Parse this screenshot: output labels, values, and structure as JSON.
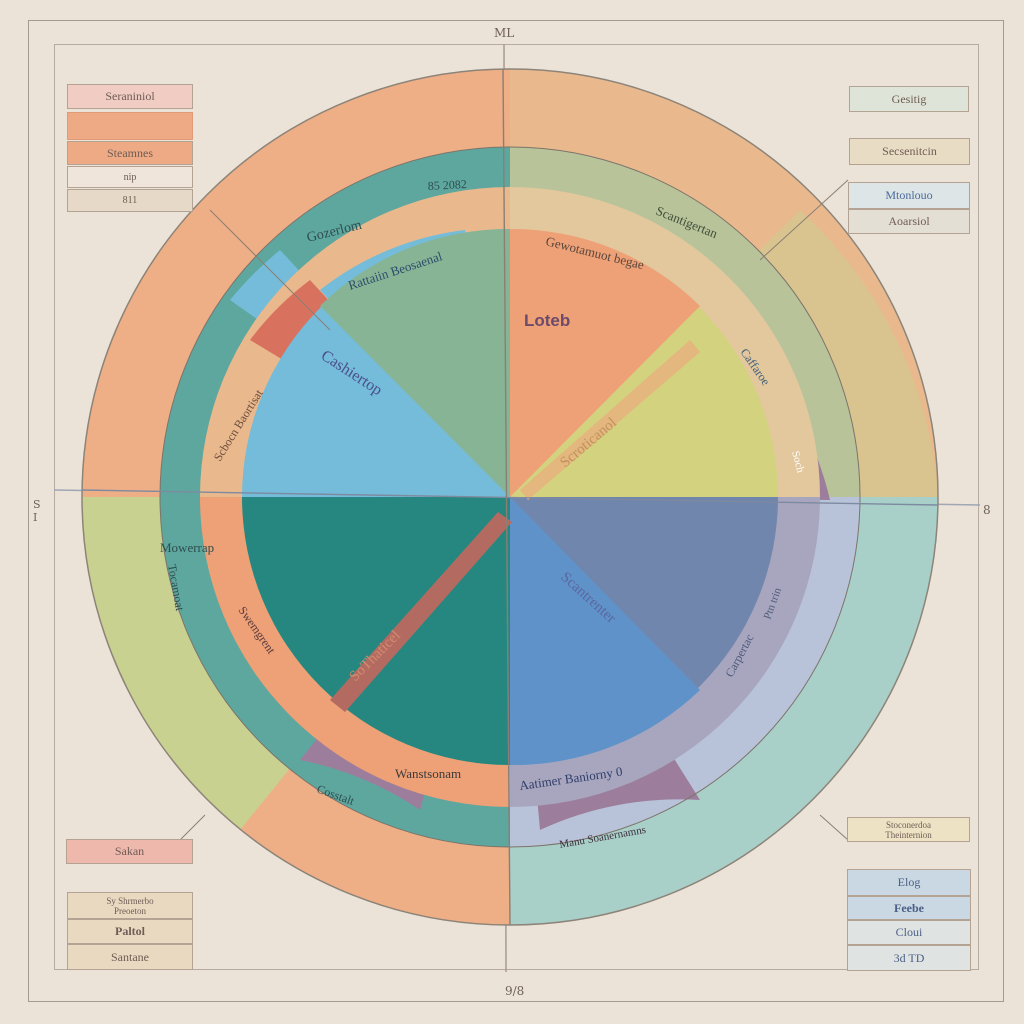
{
  "frame": {
    "top_label": "ML",
    "bottom_label": "9/8",
    "left_label": "S\nI",
    "right_label": "8"
  },
  "center_label": "Loteb",
  "inner_labels": {
    "nw": "Cashiertop",
    "ne": "Scroticanol",
    "sw": "SoThaticel",
    "se": "Scantrenter"
  },
  "ring_labels": {
    "nw_top": "Gozerlom",
    "nw_top2": "85 2082",
    "nw_mid": "Rattaiin Beosaenal",
    "nw_left": "Scbocn Baortisat",
    "ne_top": "Scantigertan",
    "ne_mid": "Gewotamuot begae",
    "ne_right": "Caffaroe",
    "ne_small": "Soch",
    "sw_left": "Mowerrap",
    "sw_left2": "Tocamoat",
    "sw_bottom": "Wanstsonam",
    "sw_bottom2": "Cosstalt",
    "sw_inner": "Swemgrent",
    "se_bottom": "Aatimer Baniorny 0",
    "se_bottom2": "Manu Soanernamns",
    "se_right": "Carpertac",
    "se_right2": "Ptn trin"
  },
  "legend_left_top": [
    "Seraniniol",
    "",
    "Steamnes",
    "nip",
    "811"
  ],
  "legend_left_bottom": [
    "Sakan",
    "Sy Shrmerbo\nPreoeton",
    "Paltol",
    "Santane"
  ],
  "legend_right_top": [
    "Gesitig",
    "Secsenitcin",
    "Mtonlouo",
    "Aoarsiol"
  ],
  "legend_right_bottom": [
    "Stoconerdoa\nTheinternion",
    "Elog",
    "Feebe",
    "Cloui",
    "3d TD"
  ],
  "colors": {
    "peach": "#eeae86",
    "teal": "#5ea79e",
    "green": "#88b496",
    "sky": "#74bcd9",
    "orange": "#eea077",
    "olive": "#d3d37f",
    "navy": "#7186ad",
    "blue": "#5f92c9",
    "darkteal": "#25877f",
    "mint": "#a7cdc6",
    "lightolive": "#c7cf88",
    "salmon": "#d8725e",
    "mauve": "#9c7e9c",
    "lavender": "#b8c3d9"
  }
}
